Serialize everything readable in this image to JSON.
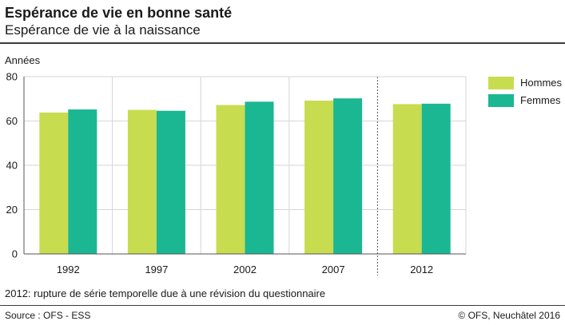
{
  "header": {
    "title": "Espérance de vie en bonne santé",
    "subtitle": "Espérance de vie à la naissance"
  },
  "footer": {
    "note": "2012: rupture de série temporelle due à une révision du questionnaire",
    "source": "Source : OFS - ESS",
    "credit": "© OFS, Neuchâtel 2016"
  },
  "colors": {
    "hommes": "#c8dc50",
    "femmes": "#1ab792"
  },
  "chart_data": {
    "type": "bar",
    "title": "Espérance de vie en bonne santé",
    "subtitle": "Espérance de vie à la naissance",
    "ylabel": "Années",
    "xlabel": "",
    "categories": [
      "1992",
      "1997",
      "2002",
      "2007",
      "2012"
    ],
    "series": [
      {
        "name": "Hommes",
        "values": [
          63.8,
          65.0,
          67.2,
          69.2,
          67.6
        ]
      },
      {
        "name": "Femmes",
        "values": [
          65.2,
          64.6,
          68.7,
          70.2,
          67.8
        ]
      }
    ],
    "ylim": [
      0,
      80
    ],
    "yticks": [
      0,
      20,
      40,
      60,
      80
    ],
    "grid": true,
    "legend_position": "right",
    "break_before_category": "2012"
  }
}
